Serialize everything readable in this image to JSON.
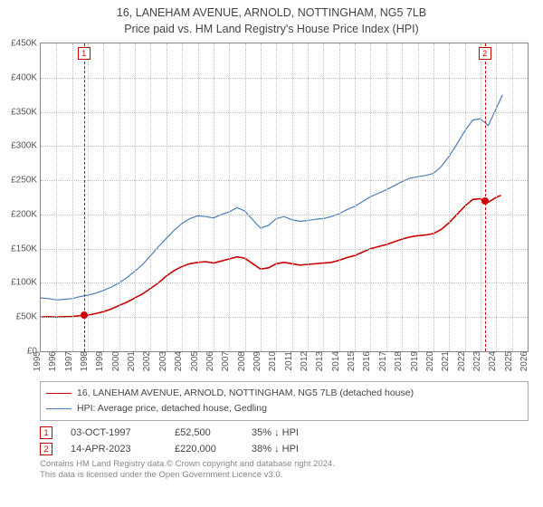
{
  "title": "16, LANEHAM AVENUE, ARNOLD, NOTTINGHAM, NG5 7LB",
  "subtitle": "Price paid vs. HM Land Registry's House Price Index (HPI)",
  "chart": {
    "type": "line",
    "xlim": [
      1995,
      2026
    ],
    "ylim": [
      0,
      450000
    ],
    "ystep": 50000,
    "xstep": 1,
    "grid_color": "#bfbfbf",
    "border_color": "#888888",
    "background_color": "#ffffff",
    "yticks": [
      {
        "v": 0,
        "label": "£0"
      },
      {
        "v": 50000,
        "label": "£50K"
      },
      {
        "v": 100000,
        "label": "£100K"
      },
      {
        "v": 150000,
        "label": "£150K"
      },
      {
        "v": 200000,
        "label": "£200K"
      },
      {
        "v": 250000,
        "label": "£250K"
      },
      {
        "v": 300000,
        "label": "£300K"
      },
      {
        "v": 350000,
        "label": "£350K"
      },
      {
        "v": 400000,
        "label": "£400K"
      },
      {
        "v": 450000,
        "label": "£450K"
      }
    ],
    "xticks": [
      1995,
      1996,
      1997,
      1998,
      1999,
      2000,
      2001,
      2002,
      2003,
      2004,
      2005,
      2006,
      2007,
      2008,
      2009,
      2010,
      2011,
      2012,
      2013,
      2014,
      2015,
      2016,
      2017,
      2018,
      2019,
      2020,
      2021,
      2022,
      2023,
      2024,
      2025,
      2026
    ],
    "series": [
      {
        "label": "16, LANEHAM AVENUE, ARNOLD, NOTTINGHAM, NG5 7LB (detached house)",
        "color": "#cc0000",
        "line_width": 1.6,
        "data": [
          [
            1995.0,
            50000
          ],
          [
            1995.5,
            50500
          ],
          [
            1996.0,
            50000
          ],
          [
            1996.5,
            50500
          ],
          [
            1997.0,
            51000
          ],
          [
            1997.5,
            52000
          ],
          [
            1997.75,
            52500
          ],
          [
            1998.0,
            53000
          ],
          [
            1998.5,
            55000
          ],
          [
            1999.0,
            58000
          ],
          [
            1999.5,
            62000
          ],
          [
            2000.0,
            67000
          ],
          [
            2000.5,
            72000
          ],
          [
            2001.0,
            78000
          ],
          [
            2001.5,
            84000
          ],
          [
            2002.0,
            92000
          ],
          [
            2002.5,
            100000
          ],
          [
            2003.0,
            110000
          ],
          [
            2003.5,
            118000
          ],
          [
            2004.0,
            124000
          ],
          [
            2004.5,
            128000
          ],
          [
            2005.0,
            130000
          ],
          [
            2005.5,
            131000
          ],
          [
            2006.0,
            129000
          ],
          [
            2006.5,
            132000
          ],
          [
            2007.0,
            135000
          ],
          [
            2007.5,
            138000
          ],
          [
            2008.0,
            136000
          ],
          [
            2008.5,
            128000
          ],
          [
            2009.0,
            120000
          ],
          [
            2009.5,
            122000
          ],
          [
            2010.0,
            128000
          ],
          [
            2010.5,
            130000
          ],
          [
            2011.0,
            128000
          ],
          [
            2011.5,
            126000
          ],
          [
            2012.0,
            127000
          ],
          [
            2012.5,
            128000
          ],
          [
            2013.0,
            129000
          ],
          [
            2013.5,
            130000
          ],
          [
            2014.0,
            133000
          ],
          [
            2014.5,
            137000
          ],
          [
            2015.0,
            140000
          ],
          [
            2015.5,
            145000
          ],
          [
            2016.0,
            150000
          ],
          [
            2016.5,
            153000
          ],
          [
            2017.0,
            156000
          ],
          [
            2017.5,
            160000
          ],
          [
            2018.0,
            164000
          ],
          [
            2018.5,
            167000
          ],
          [
            2019.0,
            169000
          ],
          [
            2019.5,
            170000
          ],
          [
            2020.0,
            172000
          ],
          [
            2020.5,
            178000
          ],
          [
            2021.0,
            188000
          ],
          [
            2021.5,
            200000
          ],
          [
            2022.0,
            212000
          ],
          [
            2022.5,
            222000
          ],
          [
            2023.0,
            223000
          ],
          [
            2023.28,
            220000
          ],
          [
            2023.5,
            218000
          ],
          [
            2024.0,
            225000
          ],
          [
            2024.3,
            228000
          ]
        ]
      },
      {
        "label": "HPI: Average price, detached house, Gedling",
        "color": "#4a7ebb",
        "line_width": 1.2,
        "data": [
          [
            1995.0,
            78000
          ],
          [
            1995.5,
            77000
          ],
          [
            1996.0,
            75000
          ],
          [
            1996.5,
            76000
          ],
          [
            1997.0,
            77000
          ],
          [
            1997.5,
            80000
          ],
          [
            1998.0,
            82000
          ],
          [
            1998.5,
            85000
          ],
          [
            1999.0,
            89000
          ],
          [
            1999.5,
            94000
          ],
          [
            2000.0,
            100000
          ],
          [
            2000.5,
            108000
          ],
          [
            2001.0,
            117000
          ],
          [
            2001.5,
            127000
          ],
          [
            2002.0,
            140000
          ],
          [
            2002.5,
            153000
          ],
          [
            2003.0,
            165000
          ],
          [
            2003.5,
            177000
          ],
          [
            2004.0,
            187000
          ],
          [
            2004.5,
            194000
          ],
          [
            2005.0,
            198000
          ],
          [
            2005.5,
            197000
          ],
          [
            2006.0,
            195000
          ],
          [
            2006.5,
            200000
          ],
          [
            2007.0,
            204000
          ],
          [
            2007.5,
            210000
          ],
          [
            2008.0,
            205000
          ],
          [
            2008.5,
            192000
          ],
          [
            2009.0,
            180000
          ],
          [
            2009.5,
            184000
          ],
          [
            2010.0,
            194000
          ],
          [
            2010.5,
            197000
          ],
          [
            2011.0,
            192000
          ],
          [
            2011.5,
            190000
          ],
          [
            2012.0,
            191000
          ],
          [
            2012.5,
            193000
          ],
          [
            2013.0,
            194000
          ],
          [
            2013.5,
            197000
          ],
          [
            2014.0,
            201000
          ],
          [
            2014.5,
            207000
          ],
          [
            2015.0,
            212000
          ],
          [
            2015.5,
            219000
          ],
          [
            2016.0,
            226000
          ],
          [
            2016.5,
            231000
          ],
          [
            2017.0,
            236000
          ],
          [
            2017.5,
            242000
          ],
          [
            2018.0,
            248000
          ],
          [
            2018.5,
            253000
          ],
          [
            2019.0,
            255000
          ],
          [
            2019.5,
            257000
          ],
          [
            2020.0,
            260000
          ],
          [
            2020.5,
            270000
          ],
          [
            2021.0,
            285000
          ],
          [
            2021.5,
            303000
          ],
          [
            2022.0,
            322000
          ],
          [
            2022.5,
            338000
          ],
          [
            2023.0,
            340000
          ],
          [
            2023.5,
            330000
          ],
          [
            2024.0,
            355000
          ],
          [
            2024.4,
            375000
          ]
        ]
      }
    ],
    "markers": [
      {
        "id": "1",
        "x": 1997.75,
        "y": 52500,
        "color": "#cc0000"
      },
      {
        "id": "2",
        "x": 2023.28,
        "y": 220000,
        "color": "#cc0000"
      }
    ]
  },
  "sales": [
    {
      "id": "1",
      "date": "03-OCT-1997",
      "price": "£52,500",
      "pct": "35% ↓ HPI",
      "color": "#cc0000"
    },
    {
      "id": "2",
      "date": "14-APR-2023",
      "price": "£220,000",
      "pct": "38% ↓ HPI",
      "color": "#cc0000"
    }
  ],
  "footer_line1": "Contains HM Land Registry data © Crown copyright and database right 2024.",
  "footer_line2": "This data is licensed under the Open Government Licence v3.0."
}
